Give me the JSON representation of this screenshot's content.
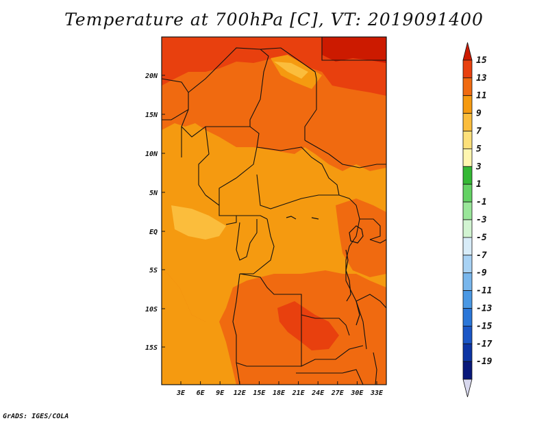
{
  "map": {
    "title": "Temperature at 700hPa [C], VT: 2019091400",
    "credit": "GrADS: IGES/COLA",
    "lat_labels": [
      "20N",
      "15N",
      "10N",
      "5N",
      "EQ",
      "5S",
      "10S",
      "15S"
    ],
    "lon_labels": [
      "3E",
      "6E",
      "9E",
      "12E",
      "15E",
      "18E",
      "21E",
      "24E",
      "27E",
      "30E",
      "33E"
    ],
    "region": "Central Africa"
  },
  "colorbar": {
    "labels": [
      "15",
      "13",
      "11",
      "9",
      "7",
      "5",
      "3",
      "1",
      "-1",
      "-3",
      "-5",
      "-7",
      "-9",
      "-11",
      "-13",
      "-15",
      "-17",
      "-19"
    ],
    "colors": [
      "#cc1a00",
      "#e8400e",
      "#f06a10",
      "#f59a10",
      "#fbbd3c",
      "#fde07a",
      "#fff6b0",
      "#34b834",
      "#64d264",
      "#9ae69a",
      "#d2f4d2",
      "#d8ecf8",
      "#a8d2f4",
      "#78b6ec",
      "#4a98e4",
      "#2a76d8",
      "#1a56c6",
      "#0c34a4",
      "#08187a",
      "#d8d8ee"
    ]
  }
}
